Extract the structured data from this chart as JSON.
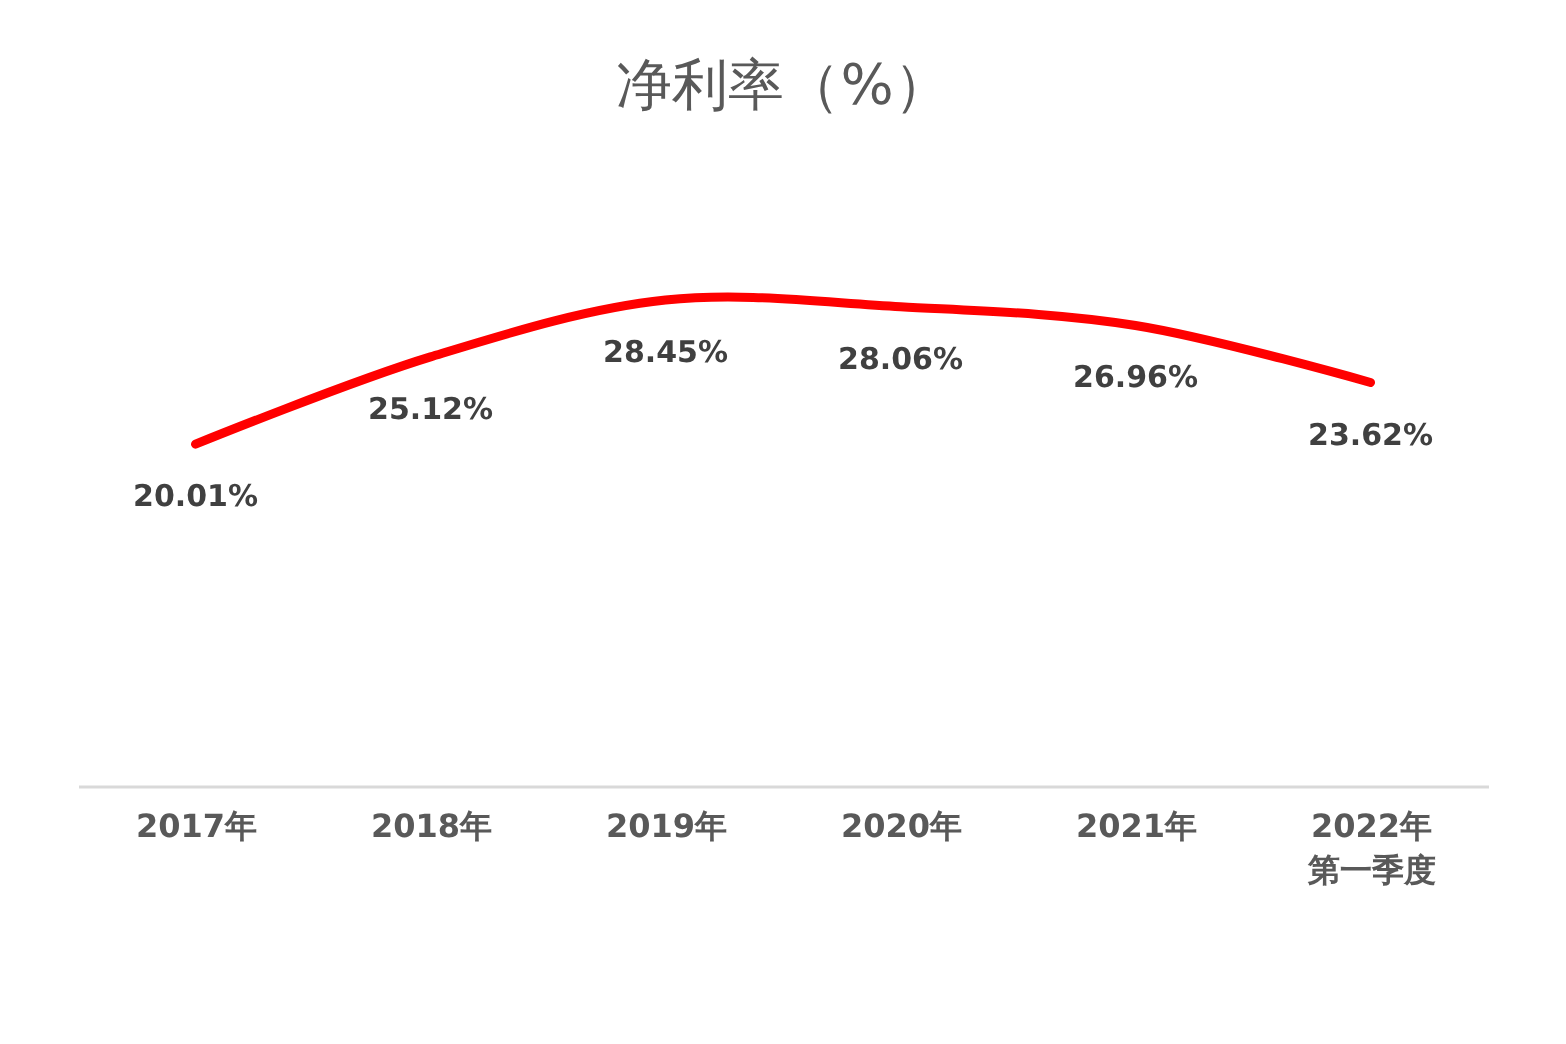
{
  "chart_data": {
    "type": "line",
    "title": "净利率（%）",
    "categories": [
      "2017年",
      "2018年",
      "2019年",
      "2020年",
      "2021年",
      "2022年第一季度"
    ],
    "series": [
      {
        "color": "#ff0000",
        "values": [
          20.01,
          25.12,
          28.45,
          28.06,
          26.96,
          23.62
        ],
        "value_labels": [
          "20.01%",
          "25.12%",
          "28.45%",
          "28.06%",
          "26.96%",
          "23.62%"
        ]
      }
    ],
    "tick_labels": "x",
    "grid": false,
    "line_style": "solid"
  }
}
